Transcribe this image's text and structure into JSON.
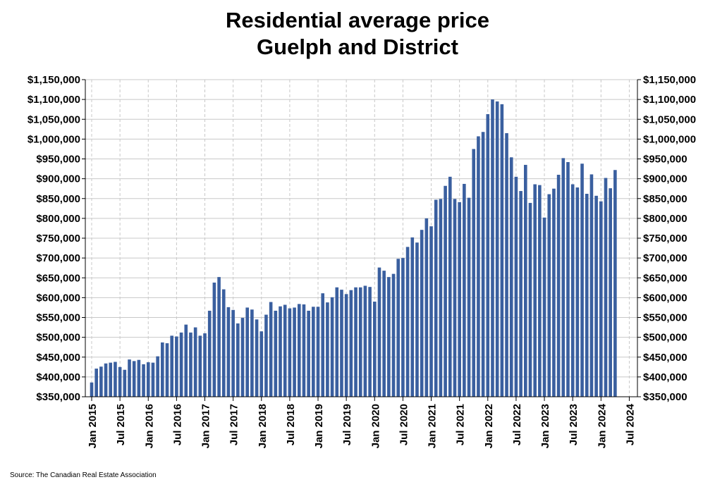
{
  "chart_data": {
    "type": "bar",
    "title": "Residential average price",
    "subtitle": "Guelph and District",
    "xlabel": "",
    "ylabel": "",
    "ylim": [
      350000,
      1150000
    ],
    "ytick_values": [
      350000,
      400000,
      450000,
      500000,
      550000,
      600000,
      650000,
      700000,
      750000,
      800000,
      850000,
      900000,
      950000,
      1000000,
      1050000,
      1100000,
      1150000
    ],
    "ytick_labels": [
      "$350,000",
      "$400,000",
      "$450,000",
      "$500,000",
      "$550,000",
      "$600,000",
      "$650,000",
      "$700,000",
      "$750,000",
      "$800,000",
      "$850,000",
      "$900,000",
      "$950,000",
      "$1,000,000",
      "$1,050,000",
      "$1,100,000",
      "$1,150,000"
    ],
    "xtick_labels": [
      "Jan 2015",
      "Jul 2015",
      "Jan 2016",
      "Jul 2016",
      "Jan 2017",
      "Jul 2017",
      "Jan 2018",
      "Jul 2018",
      "Jan 2019",
      "Jul 2019",
      "Jan 2020",
      "Jul 2020",
      "Jan 2021",
      "Jul 2021",
      "Jan 2022",
      "Jul 2022",
      "Jan 2023",
      "Jul 2023",
      "Jan 2024",
      "Jul 2024"
    ],
    "start": "Jan 2015",
    "grid": true,
    "color": "#3a5f9f",
    "series": [
      {
        "name": "Residential average price",
        "values": [
          386000,
          421000,
          426000,
          434000,
          436000,
          438000,
          425000,
          418000,
          444000,
          440000,
          443000,
          432000,
          437000,
          436000,
          452000,
          487000,
          485000,
          504000,
          502000,
          512000,
          532000,
          512000,
          525000,
          504000,
          510000,
          567000,
          638000,
          652000,
          621000,
          576000,
          569000,
          535000,
          549000,
          575000,
          570000,
          545000,
          515000,
          557000,
          589000,
          567000,
          578000,
          582000,
          573000,
          575000,
          584000,
          583000,
          567000,
          577000,
          577000,
          611000,
          588000,
          601000,
          626000,
          620000,
          609000,
          619000,
          626000,
          626000,
          630000,
          627000,
          590000,
          676000,
          668000,
          652000,
          660000,
          698000,
          700000,
          728000,
          752000,
          739000,
          771000,
          800000,
          780000,
          847000,
          849000,
          882000,
          905000,
          849000,
          841000,
          887000,
          852000,
          975000,
          1007000,
          1018000,
          1063000,
          1100000,
          1095000,
          1088000,
          1015000,
          954000,
          905000,
          869000,
          935000,
          839000,
          886000,
          884000,
          802000,
          861000,
          875000,
          910000,
          952000,
          942000,
          886000,
          878000,
          938000,
          862000,
          911000,
          857000,
          843000,
          902000,
          876000,
          922000
        ]
      }
    ]
  },
  "source": "Source: The Canadian Real Estate Association"
}
